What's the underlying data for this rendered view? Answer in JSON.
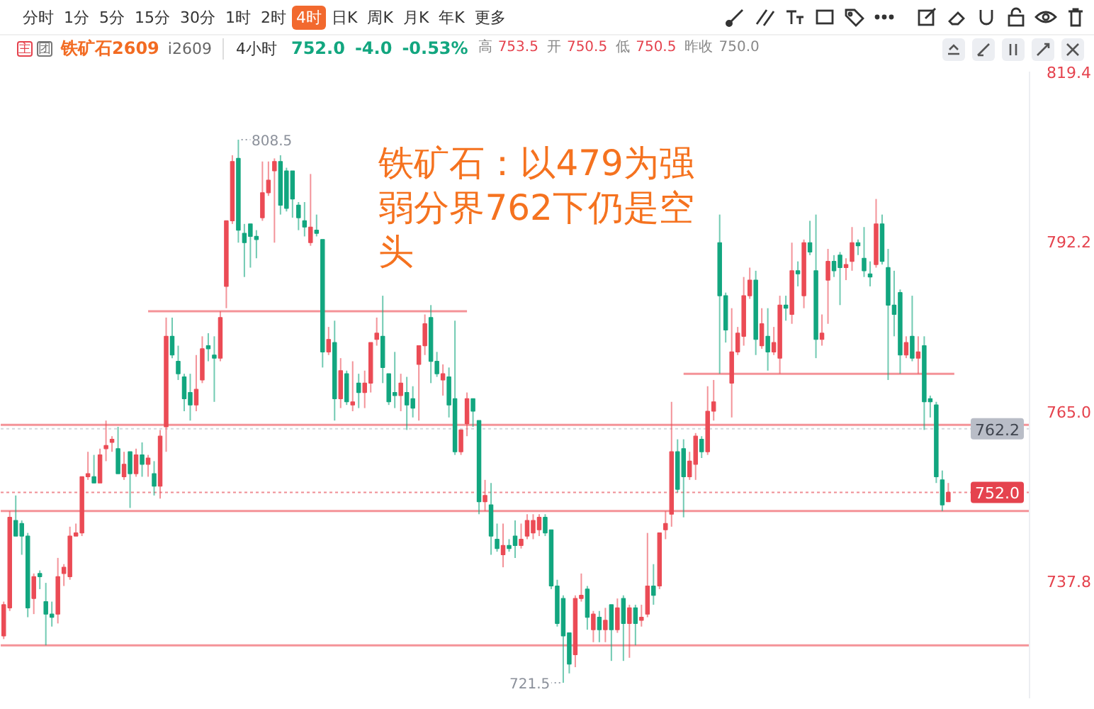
{
  "chart_data": {
    "type": "candlestick",
    "title": "铁矿石2609",
    "subtitle": "i2609 4小时 752.0 -4.0 -0.53% 高 753.5 开 750.5 低 750.5 昨收 750.0",
    "annotations": [
      "铁矿石：以479为强弱分界762下仍是空头",
      "808.5",
      "721.5",
      "主",
      "团",
      "分时",
      "1分",
      "5分",
      "15分",
      "30分",
      "1时",
      "2时",
      "4时",
      "日K",
      "周K",
      "月K",
      "年K",
      "更多"
    ],
    "categories": [
      null,
      null,
      null,
      null,
      null,
      null,
      null,
      null,
      null,
      null,
      null,
      null,
      null,
      null,
      null,
      null,
      null,
      null,
      null,
      null,
      null,
      null,
      null,
      null,
      null,
      null,
      null,
      null,
      null,
      null,
      null,
      null,
      null,
      null,
      null,
      null,
      null,
      null,
      null,
      null,
      null,
      null,
      null,
      null,
      null,
      null,
      null,
      null,
      null,
      null,
      null,
      null,
      null,
      null,
      null,
      null,
      null,
      null,
      null,
      null,
      null,
      null,
      null,
      null,
      null,
      null,
      null,
      null,
      null,
      null,
      null,
      null,
      null,
      null,
      null,
      null,
      null,
      null,
      null,
      null,
      null,
      null,
      null,
      null,
      null,
      null,
      null,
      null,
      null,
      null,
      null,
      null,
      null,
      null,
      null,
      null,
      null,
      null,
      null,
      null,
      null,
      null,
      null,
      null,
      null,
      null,
      null,
      null,
      null,
      null,
      null,
      null,
      null,
      null,
      null,
      null,
      null,
      null,
      null,
      null,
      null,
      null,
      null,
      null,
      null,
      null,
      null,
      null,
      null,
      null,
      null,
      null,
      null,
      null,
      null,
      null,
      null,
      null,
      null,
      null,
      null,
      null,
      null,
      null,
      null,
      null,
      null,
      null,
      null,
      null,
      null,
      null,
      null,
      null,
      null,
      null,
      null,
      null,
      null,
      null,
      null,
      null,
      null,
      null,
      null,
      null,
      null,
      null,
      null,
      null,
      null
    ],
    "ohlc": [
      [
        729.0,
        734.5,
        728.5,
        734.0
      ],
      [
        733.5,
        749.0,
        733.0,
        748.0
      ],
      [
        747.5,
        751.5,
        745.0,
        745.0
      ],
      [
        747.0,
        747.5,
        742.0,
        745.0
      ],
      [
        745.0,
        745.5,
        732.0,
        733.5
      ],
      [
        735.0,
        739.0,
        732.5,
        738.5
      ],
      [
        739.0,
        739.5,
        736.5,
        738.5
      ],
      [
        734.5,
        737.5,
        727.5,
        732.5
      ],
      [
        732.5,
        734.5,
        730.5,
        732.0
      ],
      [
        732.5,
        741.5,
        731.0,
        738.5
      ],
      [
        739.0,
        740.5,
        737.0,
        740.0
      ],
      [
        738.5,
        746.5,
        738.0,
        745.0
      ],
      [
        745.0,
        747.0,
        745.0,
        745.5
      ],
      [
        745.5,
        754.5,
        745.0,
        754.5
      ],
      [
        754.5,
        758.5,
        754.0,
        755.0
      ],
      [
        754.5,
        758.0,
        753.5,
        753.5
      ],
      [
        753.5,
        759.0,
        753.5,
        758.0
      ],
      [
        759.0,
        763.5,
        757.0,
        759.5
      ],
      [
        760.0,
        761.0,
        758.5,
        760.5
      ],
      [
        759.0,
        762.5,
        755.0,
        755.0
      ],
      [
        754.5,
        758.5,
        754.0,
        756.5
      ],
      [
        758.5,
        758.5,
        749.5,
        755.0
      ],
      [
        755.0,
        759.0,
        754.5,
        758.0
      ],
      [
        758.0,
        760.0,
        754.5,
        756.5
      ],
      [
        756.5,
        758.0,
        754.5,
        757.5
      ],
      [
        755.0,
        757.0,
        751.5,
        753.0
      ],
      [
        753.0,
        762.0,
        751.0,
        761.0
      ],
      [
        762.5,
        780.0,
        758.5,
        777.0
      ],
      [
        777.0,
        780.0,
        773.5,
        774.0
      ],
      [
        773.0,
        775.5,
        770.0,
        771.0
      ],
      [
        770.5,
        771.0,
        765.0,
        767.0
      ],
      [
        768.0,
        771.0,
        763.5,
        766.0
      ],
      [
        766.0,
        774.0,
        765.0,
        768.5
      ],
      [
        770.0,
        777.0,
        769.5,
        775.0
      ],
      [
        775.5,
        777.5,
        773.0,
        775.0
      ],
      [
        774.0,
        777.0,
        766.5,
        773.5
      ],
      [
        773.5,
        781.0,
        773.0,
        780.0
      ],
      [
        785.0,
        795.5,
        781.5,
        795.5
      ],
      [
        795.5,
        806.0,
        795.0,
        805.0
      ],
      [
        805.5,
        808.5,
        792.0,
        794.0
      ],
      [
        793.5,
        795.0,
        786.5,
        792.0
      ],
      [
        795.0,
        795.0,
        788.0,
        793.0
      ],
      [
        793.0,
        794.0,
        789.5,
        792.5
      ],
      [
        796.0,
        805.0,
        795.5,
        800.0
      ],
      [
        800.0,
        805.0,
        799.5,
        802.0
      ],
      [
        803.5,
        805.5,
        792.0,
        805.0
      ],
      [
        805.0,
        806.0,
        796.5,
        798.0
      ],
      [
        803.5,
        804.0,
        797.0,
        797.5
      ],
      [
        803.5,
        803.5,
        796.0,
        799.0
      ],
      [
        798.0,
        798.5,
        794.0,
        796.0
      ],
      [
        795.5,
        798.5,
        793.0,
        794.5
      ],
      [
        792.0,
        803.0,
        791.5,
        794.5
      ],
      [
        794.0,
        796.5,
        793.0,
        793.5
      ],
      [
        792.5,
        792.5,
        772.0,
        774.5
      ],
      [
        774.5,
        778.5,
        774.0,
        776.5
      ],
      [
        776.0,
        779.5,
        763.5,
        767.0
      ],
      [
        767.0,
        773.5,
        765.5,
        771.5
      ],
      [
        771.0,
        771.5,
        766.0,
        766.5
      ],
      [
        766.0,
        773.0,
        765.0,
        766.5
      ],
      [
        769.5,
        771.0,
        765.5,
        768.0
      ],
      [
        768.0,
        771.5,
        765.5,
        769.5
      ],
      [
        769.5,
        776.0,
        768.0,
        776.0
      ],
      [
        776.5,
        780.0,
        775.5,
        777.5
      ],
      [
        777.0,
        783.5,
        769.5,
        772.0
      ],
      [
        771.0,
        771.0,
        766.0,
        766.5
      ],
      [
        768.0,
        774.5,
        765.5,
        767.5
      ],
      [
        767.5,
        771.0,
        765.0,
        769.5
      ],
      [
        768.0,
        770.5,
        762.0,
        766.0
      ],
      [
        767.0,
        769.0,
        764.0,
        765.5
      ],
      [
        772.5,
        775.5,
        763.5,
        775.5
      ],
      [
        775.5,
        780.5,
        774.0,
        779.0
      ],
      [
        780.0,
        782.0,
        769.5,
        773.0
      ],
      [
        773.0,
        774.5,
        770.5,
        771.0
      ],
      [
        770.0,
        772.5,
        767.5,
        771.0
      ],
      [
        770.5,
        772.0,
        764.0,
        766.0
      ],
      [
        767.0,
        779.5,
        758.0,
        758.5
      ],
      [
        758.5,
        762.0,
        758.0,
        762.0
      ],
      [
        763.0,
        768.0,
        761.0,
        767.0
      ],
      [
        767.0,
        767.0,
        762.5,
        765.0
      ],
      [
        763.5,
        763.5,
        748.5,
        750.5
      ],
      [
        750.5,
        754.0,
        749.0,
        751.5
      ],
      [
        750.0,
        753.5,
        742.0,
        745.0
      ],
      [
        744.5,
        747.0,
        742.5,
        743.0
      ],
      [
        742.0,
        747.0,
        740.0,
        743.5
      ],
      [
        743.5,
        744.5,
        742.5,
        743.0
      ],
      [
        745.0,
        747.5,
        741.5,
        743.5
      ],
      [
        743.5,
        747.0,
        743.0,
        744.5
      ],
      [
        745.0,
        748.5,
        744.5,
        747.5
      ],
      [
        745.5,
        748.5,
        744.5,
        747.5
      ],
      [
        746.0,
        748.5,
        745.0,
        748.0
      ],
      [
        748.0,
        748.5,
        745.0,
        745.5
      ],
      [
        746.0,
        746.0,
        736.5,
        737.0
      ],
      [
        737.0,
        738.0,
        730.5,
        731.0
      ],
      [
        735.0,
        735.5,
        721.5,
        729.0
      ],
      [
        729.5,
        729.5,
        723.0,
        724.5
      ],
      [
        726.0,
        735.5,
        724.0,
        735.0
      ],
      [
        735.0,
        739.0,
        734.5,
        735.5
      ],
      [
        736.5,
        737.0,
        730.0,
        732.0
      ],
      [
        730.0,
        733.0,
        728.0,
        732.5
      ],
      [
        732.0,
        733.0,
        728.0,
        730.0
      ],
      [
        730.0,
        733.5,
        728.0,
        731.5
      ],
      [
        734.0,
        734.0,
        725.0,
        730.0
      ],
      [
        730.0,
        735.0,
        729.5,
        733.5
      ],
      [
        735.0,
        735.5,
        725.0,
        731.0
      ],
      [
        731.0,
        734.0,
        725.5,
        733.5
      ],
      [
        733.5,
        734.0,
        727.5,
        731.0
      ],
      [
        731.5,
        734.0,
        730.5,
        732.0
      ],
      [
        732.5,
        745.5,
        732.0,
        737.0
      ],
      [
        737.0,
        740.5,
        734.0,
        735.5
      ],
      [
        737.0,
        745.5,
        736.5,
        745.5
      ],
      [
        746.0,
        749.0,
        744.5,
        747.0
      ],
      [
        748.5,
        766.5,
        746.5,
        758.5
      ],
      [
        758.5,
        760.5,
        752.0,
        752.5
      ],
      [
        759.0,
        760.5,
        748.0,
        754.5
      ],
      [
        754.5,
        758.5,
        754.0,
        757.0
      ],
      [
        756.5,
        761.5,
        754.0,
        761.0
      ],
      [
        760.5,
        761.0,
        757.5,
        758.5
      ],
      [
        758.5,
        769.0,
        758.0,
        765.0
      ],
      [
        765.0,
        770.0,
        763.5,
        766.5
      ],
      [
        792.0,
        796.5,
        771.0,
        783.5
      ],
      [
        783.5,
        784.0,
        776.0,
        778.0
      ],
      [
        769.5,
        781.5,
        764.0,
        774.5
      ],
      [
        774.5,
        778.5,
        774.0,
        777.5
      ],
      [
        777.0,
        786.5,
        775.5,
        783.5
      ],
      [
        783.5,
        788.0,
        783.0,
        786.0
      ],
      [
        786.0,
        787.5,
        774.0,
        776.5
      ],
      [
        775.5,
        781.5,
        775.0,
        779.0
      ],
      [
        777.0,
        781.5,
        771.5,
        774.5
      ],
      [
        774.5,
        778.5,
        774.0,
        776.0
      ],
      [
        773.5,
        783.5,
        771.0,
        782.0
      ],
      [
        782.0,
        783.5,
        779.5,
        781.5
      ],
      [
        780.5,
        792.0,
        779.0,
        787.5
      ],
      [
        787.5,
        789.0,
        785.0,
        787.0
      ],
      [
        783.5,
        792.5,
        781.5,
        792.0
      ],
      [
        792.0,
        795.5,
        790.0,
        790.5
      ],
      [
        787.5,
        796.5,
        773.5,
        776.5
      ],
      [
        776.5,
        780.5,
        775.5,
        777.5
      ],
      [
        786.0,
        791.0,
        779.0,
        789.0
      ],
      [
        789.0,
        790.0,
        786.5,
        787.5
      ],
      [
        790.0,
        790.5,
        782.0,
        788.0
      ],
      [
        788.0,
        789.5,
        786.0,
        788.5
      ],
      [
        789.0,
        794.5,
        787.5,
        792.0
      ],
      [
        792.0,
        792.5,
        790.0,
        791.5
      ],
      [
        789.5,
        794.5,
        786.5,
        787.5
      ],
      [
        787.0,
        789.0,
        785.0,
        786.5
      ],
      [
        788.5,
        799.0,
        788.0,
        795.0
      ],
      [
        795.0,
        796.5,
        788.5,
        789.0
      ],
      [
        788.0,
        791.0,
        770.0,
        782.0
      ],
      [
        782.0,
        787.5,
        777.0,
        780.5
      ],
      [
        784.0,
        784.5,
        771.0,
        774.0
      ],
      [
        774.0,
        777.0,
        773.5,
        776.0
      ],
      [
        777.0,
        783.5,
        773.0,
        773.5
      ],
      [
        773.5,
        777.0,
        771.0,
        774.5
      ],
      [
        775.5,
        777.0,
        762.0,
        766.5
      ],
      [
        767.0,
        767.5,
        764.0,
        766.5
      ],
      [
        766.0,
        766.5,
        753.5,
        754.5
      ],
      [
        754.0,
        755.5,
        749.0,
        750.0
      ],
      [
        750.5,
        753.5,
        750.5,
        752.0
      ],
      null,
      null,
      null,
      null,
      null,
      null,
      null,
      null,
      null,
      null,
      null,
      null,
      null
    ],
    "colors": [
      "#eb4b55",
      "#eb4b55",
      "#12a67f",
      "#12a67f",
      "#12a67f",
      "#eb4b55",
      "#12a67f",
      "#12a67f",
      "#12a67f",
      "#eb4b55",
      "#eb4b55",
      "#eb4b55",
      "#eb4b55",
      "#eb4b55",
      "#eb4b55",
      "#12a67f",
      "#eb4b55",
      "#eb4b55",
      "#eb4b55",
      "#12a67f",
      "#eb4b55",
      "#12a67f",
      "#eb4b55",
      "#12a67f",
      "#eb4b55",
      "#12a67f",
      "#eb4b55",
      "#eb4b55",
      "#12a67f",
      "#12a67f",
      "#12a67f",
      "#12a67f",
      "#eb4b55",
      "#eb4b55",
      "#12a67f",
      "#12a67f",
      "#eb4b55",
      "#eb4b55",
      "#eb4b55",
      "#12a67f",
      "#12a67f",
      "#12a67f",
      "#12a67f",
      "#eb4b55",
      "#eb4b55",
      "#eb4b55",
      "#12a67f",
      "#12a67f",
      "#12a67f",
      "#12a67f",
      "#12a67f",
      "#eb4b55",
      "#12a67f",
      "#12a67f",
      "#eb4b55",
      "#12a67f",
      "#eb4b55",
      "#12a67f",
      "#eb4b55",
      "#12a67f",
      "#eb4b55",
      "#eb4b55",
      "#eb4b55",
      "#12a67f",
      "#12a67f",
      "#12a67f",
      "#eb4b55",
      "#12a67f",
      "#12a67f",
      "#eb4b55",
      "#eb4b55",
      "#12a67f",
      "#12a67f",
      "#eb4b55",
      "#12a67f",
      "#12a67f",
      "#eb4b55",
      "#eb4b55",
      "#12a67f",
      "#12a67f",
      "#eb4b55",
      "#12a67f",
      "#12a67f",
      "#eb4b55",
      "#12a67f",
      "#12a67f",
      "#eb4b55",
      "#eb4b55",
      "#eb4b55",
      "#eb4b55",
      "#12a67f",
      "#12a67f",
      "#12a67f",
      "#12a67f",
      "#12a67f",
      "#eb4b55",
      "#eb4b55",
      "#12a67f",
      "#eb4b55",
      "#12a67f",
      "#eb4b55",
      "#12a67f",
      "#eb4b55",
      "#12a67f",
      "#eb4b55",
      "#12a67f",
      "#eb4b55",
      "#eb4b55",
      "#12a67f",
      "#eb4b55",
      "#eb4b55",
      "#eb4b55",
      "#12a67f",
      "#12a67f",
      "#eb4b55",
      "#eb4b55",
      "#12a67f",
      "#eb4b55",
      "#eb4b55",
      "#12a67f",
      "#12a67f",
      "#eb4b55",
      "#eb4b55",
      "#eb4b55",
      "#eb4b55",
      "#12a67f",
      "#eb4b55",
      "#12a67f",
      "#eb4b55",
      "#eb4b55",
      "#12a67f",
      "#eb4b55",
      "#12a67f",
      "#eb4b55",
      "#12a67f",
      "#12a67f",
      "#eb4b55",
      "#eb4b55",
      "#12a67f",
      "#12a67f",
      "#eb4b55",
      "#eb4b55",
      "#12a67f",
      "#12a67f",
      "#12a67f",
      "#eb4b55",
      "#12a67f",
      "#12a67f",
      "#12a67f",
      "#12a67f",
      "#eb4b55",
      "#12a67f",
      "#eb4b55",
      "#12a67f",
      "#12a67f",
      "#12a67f",
      "#12a67f",
      "#eb4b55",
      null,
      null,
      null,
      null,
      null,
      null,
      null,
      null,
      null,
      null,
      null,
      null,
      null
    ],
    "series": [
      {
        "type": "line",
        "color": "#f3878d",
        "values": [
          null,
          null,
          null,
          null,
          null,
          null,
          null,
          null,
          null,
          null,
          null,
          null,
          null,
          null,
          null,
          null,
          null,
          null,
          null,
          null,
          null,
          null,
          null,
          null,
          781.0,
          781.0,
          781.0,
          781.0,
          781.0,
          781.0,
          781.0,
          781.0,
          781.0,
          781.0,
          781.0,
          781.0,
          781.0,
          781.0,
          781.0,
          781.0,
          781.0,
          781.0,
          781.0,
          781.0,
          781.0,
          781.0,
          781.0,
          781.0,
          781.0,
          781.0,
          781.0,
          781.0,
          781.0,
          781.0,
          781.0,
          781.0,
          781.0,
          781.0,
          781.0,
          781.0,
          781.0,
          781.0,
          781.0,
          781.0,
          781.0,
          781.0,
          781.0,
          781.0,
          781.0,
          781.0,
          781.0,
          781.0,
          781.0,
          781.0,
          781.0,
          781.0,
          781.0,
          781.0,
          null,
          null,
          null,
          null,
          null,
          null,
          null,
          null,
          null,
          null,
          null,
          null,
          null,
          null,
          null,
          null,
          null,
          null,
          null,
          null,
          null,
          null,
          null,
          null,
          null,
          null,
          null,
          null,
          null,
          null,
          null,
          null,
          null,
          null,
          null,
          null,
          null,
          null,
          null,
          null,
          null,
          null,
          null,
          null,
          null,
          null,
          null,
          null,
          null,
          null,
          null,
          null,
          null,
          null,
          null,
          null,
          null,
          null,
          null,
          null,
          null,
          null,
          null,
          null,
          null,
          null,
          null,
          null,
          null,
          null,
          null,
          null,
          null,
          null,
          null,
          null,
          null,
          null,
          null,
          null,
          null,
          null,
          null,
          null,
          null,
          null,
          null,
          null,
          null,
          null,
          null,
          null,
          null
        ]
      },
      {
        "type": "line",
        "color": "#f3878d",
        "values": [
          null,
          null,
          null,
          null,
          null,
          null,
          null,
          null,
          null,
          null,
          null,
          null,
          null,
          null,
          null,
          null,
          null,
          null,
          null,
          null,
          null,
          null,
          null,
          null,
          null,
          null,
          null,
          null,
          null,
          null,
          null,
          null,
          null,
          null,
          null,
          null,
          null,
          null,
          null,
          null,
          null,
          null,
          null,
          null,
          null,
          null,
          null,
          null,
          null,
          null,
          null,
          null,
          null,
          null,
          null,
          null,
          null,
          null,
          null,
          null,
          null,
          null,
          null,
          null,
          null,
          null,
          null,
          null,
          null,
          null,
          null,
          null,
          null,
          null,
          null,
          null,
          null,
          null,
          null,
          null,
          null,
          null,
          null,
          null,
          null,
          null,
          null,
          null,
          null,
          null,
          null,
          null,
          null,
          null,
          null,
          null,
          null,
          null,
          null,
          null,
          null,
          null,
          null,
          null,
          null,
          null,
          null,
          null,
          null,
          null,
          null,
          null,
          null,
          771.0,
          771.0,
          771.0,
          771.0,
          771.0,
          771.0,
          771.0,
          771.0,
          771.0,
          771.0,
          771.0,
          771.0,
          771.0,
          771.0,
          771.0,
          771.0,
          771.0,
          771.0,
          771.0,
          771.0,
          771.0,
          771.0,
          771.0,
          771.0,
          771.0,
          771.0,
          771.0,
          771.0,
          771.0,
          771.0,
          771.0,
          771.0,
          771.0,
          771.0,
          771.0,
          771.0,
          771.0,
          771.0,
          771.0,
          771.0,
          771.0,
          771.0,
          771.0,
          771.0,
          771.0,
          771.0,
          null,
          null,
          null,
          null,
          null,
          null,
          null,
          null,
          null,
          null,
          null,
          null
        ]
      }
    ],
    "ylim": [
      719.0,
      819.4
    ],
    "yticks": [
      737.8,
      {
        "value": 765,
        "label": "765.0"
      },
      792.2,
      819.4
    ],
    "tick_labels": "y",
    "ref_lines": [
      {
        "axis": "y",
        "value": 762.8,
        "color": "#f3878d"
      },
      {
        "axis": "y",
        "value": 749.0,
        "color": "#f3878d"
      },
      {
        "axis": "y",
        "value": 727.5,
        "color": "#f3878d"
      },
      {
        "axis": "y",
        "value": 762.2,
        "label": "762.2",
        "color": "#b9bdc7",
        "line_style": "dotted"
      },
      {
        "axis": "y",
        "value": 752.0,
        "label": "752.0",
        "color": "#e5434e",
        "line_style": "dotted"
      }
    ]
  }
}
